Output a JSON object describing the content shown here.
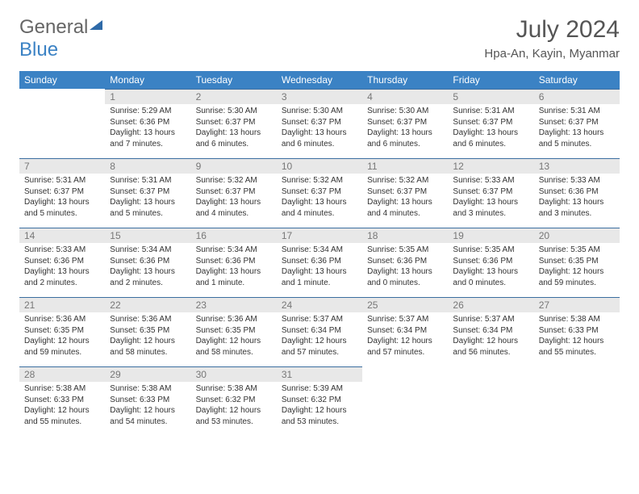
{
  "logo": {
    "general": "General",
    "blue": "Blue"
  },
  "header": {
    "month_title": "July 2024",
    "location": "Hpa-An, Kayin, Myanmar"
  },
  "colors": {
    "header_bg": "#3b82c4",
    "header_text": "#ffffff",
    "daynum_bg": "#e8e8e8",
    "daynum_text": "#777777",
    "body_text": "#333333",
    "row_divider": "#3b6ea0",
    "page_bg": "#ffffff"
  },
  "typography": {
    "month_title_fontsize": 30,
    "location_fontsize": 15,
    "day_header_fontsize": 12,
    "daynum_fontsize": 12,
    "body_fontsize": 10
  },
  "day_headers": [
    "Sunday",
    "Monday",
    "Tuesday",
    "Wednesday",
    "Thursday",
    "Friday",
    "Saturday"
  ],
  "weeks": [
    [
      null,
      {
        "n": "1",
        "sr": "Sunrise: 5:29 AM",
        "ss": "Sunset: 6:36 PM",
        "d1": "Daylight: 13 hours",
        "d2": "and 7 minutes."
      },
      {
        "n": "2",
        "sr": "Sunrise: 5:30 AM",
        "ss": "Sunset: 6:37 PM",
        "d1": "Daylight: 13 hours",
        "d2": "and 6 minutes."
      },
      {
        "n": "3",
        "sr": "Sunrise: 5:30 AM",
        "ss": "Sunset: 6:37 PM",
        "d1": "Daylight: 13 hours",
        "d2": "and 6 minutes."
      },
      {
        "n": "4",
        "sr": "Sunrise: 5:30 AM",
        "ss": "Sunset: 6:37 PM",
        "d1": "Daylight: 13 hours",
        "d2": "and 6 minutes."
      },
      {
        "n": "5",
        "sr": "Sunrise: 5:31 AM",
        "ss": "Sunset: 6:37 PM",
        "d1": "Daylight: 13 hours",
        "d2": "and 6 minutes."
      },
      {
        "n": "6",
        "sr": "Sunrise: 5:31 AM",
        "ss": "Sunset: 6:37 PM",
        "d1": "Daylight: 13 hours",
        "d2": "and 5 minutes."
      }
    ],
    [
      {
        "n": "7",
        "sr": "Sunrise: 5:31 AM",
        "ss": "Sunset: 6:37 PM",
        "d1": "Daylight: 13 hours",
        "d2": "and 5 minutes."
      },
      {
        "n": "8",
        "sr": "Sunrise: 5:31 AM",
        "ss": "Sunset: 6:37 PM",
        "d1": "Daylight: 13 hours",
        "d2": "and 5 minutes."
      },
      {
        "n": "9",
        "sr": "Sunrise: 5:32 AM",
        "ss": "Sunset: 6:37 PM",
        "d1": "Daylight: 13 hours",
        "d2": "and 4 minutes."
      },
      {
        "n": "10",
        "sr": "Sunrise: 5:32 AM",
        "ss": "Sunset: 6:37 PM",
        "d1": "Daylight: 13 hours",
        "d2": "and 4 minutes."
      },
      {
        "n": "11",
        "sr": "Sunrise: 5:32 AM",
        "ss": "Sunset: 6:37 PM",
        "d1": "Daylight: 13 hours",
        "d2": "and 4 minutes."
      },
      {
        "n": "12",
        "sr": "Sunrise: 5:33 AM",
        "ss": "Sunset: 6:37 PM",
        "d1": "Daylight: 13 hours",
        "d2": "and 3 minutes."
      },
      {
        "n": "13",
        "sr": "Sunrise: 5:33 AM",
        "ss": "Sunset: 6:36 PM",
        "d1": "Daylight: 13 hours",
        "d2": "and 3 minutes."
      }
    ],
    [
      {
        "n": "14",
        "sr": "Sunrise: 5:33 AM",
        "ss": "Sunset: 6:36 PM",
        "d1": "Daylight: 13 hours",
        "d2": "and 2 minutes."
      },
      {
        "n": "15",
        "sr": "Sunrise: 5:34 AM",
        "ss": "Sunset: 6:36 PM",
        "d1": "Daylight: 13 hours",
        "d2": "and 2 minutes."
      },
      {
        "n": "16",
        "sr": "Sunrise: 5:34 AM",
        "ss": "Sunset: 6:36 PM",
        "d1": "Daylight: 13 hours",
        "d2": "and 1 minute."
      },
      {
        "n": "17",
        "sr": "Sunrise: 5:34 AM",
        "ss": "Sunset: 6:36 PM",
        "d1": "Daylight: 13 hours",
        "d2": "and 1 minute."
      },
      {
        "n": "18",
        "sr": "Sunrise: 5:35 AM",
        "ss": "Sunset: 6:36 PM",
        "d1": "Daylight: 13 hours",
        "d2": "and 0 minutes."
      },
      {
        "n": "19",
        "sr": "Sunrise: 5:35 AM",
        "ss": "Sunset: 6:36 PM",
        "d1": "Daylight: 13 hours",
        "d2": "and 0 minutes."
      },
      {
        "n": "20",
        "sr": "Sunrise: 5:35 AM",
        "ss": "Sunset: 6:35 PM",
        "d1": "Daylight: 12 hours",
        "d2": "and 59 minutes."
      }
    ],
    [
      {
        "n": "21",
        "sr": "Sunrise: 5:36 AM",
        "ss": "Sunset: 6:35 PM",
        "d1": "Daylight: 12 hours",
        "d2": "and 59 minutes."
      },
      {
        "n": "22",
        "sr": "Sunrise: 5:36 AM",
        "ss": "Sunset: 6:35 PM",
        "d1": "Daylight: 12 hours",
        "d2": "and 58 minutes."
      },
      {
        "n": "23",
        "sr": "Sunrise: 5:36 AM",
        "ss": "Sunset: 6:35 PM",
        "d1": "Daylight: 12 hours",
        "d2": "and 58 minutes."
      },
      {
        "n": "24",
        "sr": "Sunrise: 5:37 AM",
        "ss": "Sunset: 6:34 PM",
        "d1": "Daylight: 12 hours",
        "d2": "and 57 minutes."
      },
      {
        "n": "25",
        "sr": "Sunrise: 5:37 AM",
        "ss": "Sunset: 6:34 PM",
        "d1": "Daylight: 12 hours",
        "d2": "and 57 minutes."
      },
      {
        "n": "26",
        "sr": "Sunrise: 5:37 AM",
        "ss": "Sunset: 6:34 PM",
        "d1": "Daylight: 12 hours",
        "d2": "and 56 minutes."
      },
      {
        "n": "27",
        "sr": "Sunrise: 5:38 AM",
        "ss": "Sunset: 6:33 PM",
        "d1": "Daylight: 12 hours",
        "d2": "and 55 minutes."
      }
    ],
    [
      {
        "n": "28",
        "sr": "Sunrise: 5:38 AM",
        "ss": "Sunset: 6:33 PM",
        "d1": "Daylight: 12 hours",
        "d2": "and 55 minutes."
      },
      {
        "n": "29",
        "sr": "Sunrise: 5:38 AM",
        "ss": "Sunset: 6:33 PM",
        "d1": "Daylight: 12 hours",
        "d2": "and 54 minutes."
      },
      {
        "n": "30",
        "sr": "Sunrise: 5:38 AM",
        "ss": "Sunset: 6:32 PM",
        "d1": "Daylight: 12 hours",
        "d2": "and 53 minutes."
      },
      {
        "n": "31",
        "sr": "Sunrise: 5:39 AM",
        "ss": "Sunset: 6:32 PM",
        "d1": "Daylight: 12 hours",
        "d2": "and 53 minutes."
      },
      null,
      null,
      null
    ]
  ]
}
